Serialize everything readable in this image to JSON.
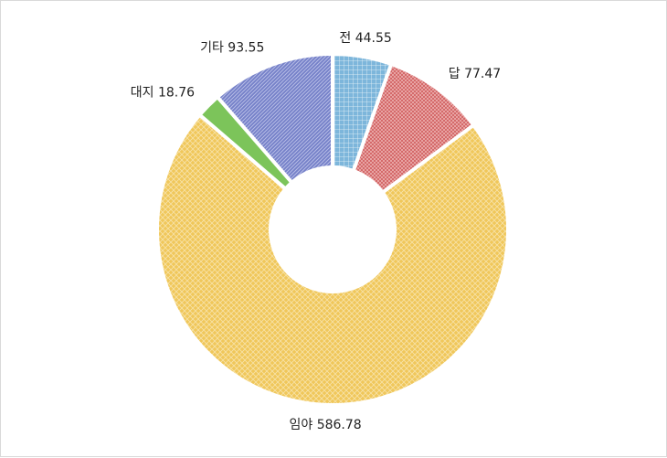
{
  "chart_data": {
    "type": "pie",
    "donut": true,
    "title": "",
    "slices": [
      {
        "label": "전",
        "value": 44.55,
        "display": "44.55",
        "color": "#6baed6",
        "pattern": "grid"
      },
      {
        "label": "답",
        "value": 77.47,
        "display": "77.47",
        "color": "#d9534f",
        "pattern": "check"
      },
      {
        "label": "임야",
        "value": 586.78,
        "display": "586.78",
        "color": "#f0c64a",
        "pattern": "diamond"
      },
      {
        "label": "대지",
        "value": 18.76,
        "display": "18.76",
        "color": "#7cc45a",
        "pattern": "solid"
      },
      {
        "label": "기타",
        "value": 93.55,
        "display": "93.55",
        "color": "#6f7bc9",
        "pattern": "diagonal"
      }
    ]
  }
}
